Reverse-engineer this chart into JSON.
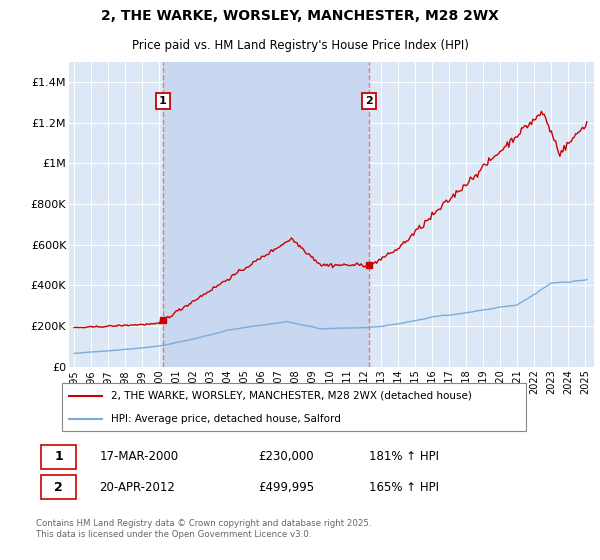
{
  "title": "2, THE WARKE, WORSLEY, MANCHESTER, M28 2WX",
  "subtitle": "Price paid vs. HM Land Registry's House Price Index (HPI)",
  "plot_bg_color": "#dce8f5",
  "shade_color": "#c8d8f0",
  "grid_color": "#ffffff",
  "ylim": [
    0,
    1500000
  ],
  "yticks": [
    0,
    200000,
    400000,
    600000,
    800000,
    1000000,
    1200000,
    1400000
  ],
  "ytick_labels": [
    "£0",
    "£200K",
    "£400K",
    "£600K",
    "£800K",
    "£1M",
    "£1.2M",
    "£1.4M"
  ],
  "xlim_start": 1994.7,
  "xlim_end": 2025.5,
  "xticks": [
    1995,
    1996,
    1997,
    1998,
    1999,
    2000,
    2001,
    2002,
    2003,
    2004,
    2005,
    2006,
    2007,
    2008,
    2009,
    2010,
    2011,
    2012,
    2013,
    2014,
    2015,
    2016,
    2017,
    2018,
    2019,
    2020,
    2021,
    2022,
    2023,
    2024,
    2025
  ],
  "red_line_color": "#cc0000",
  "blue_line_color": "#7aaddc",
  "vline_color": "#e87878",
  "annotation_box_color": "#cc0000",
  "legend_label_red": "2, THE WARKE, WORSLEY, MANCHESTER, M28 2WX (detached house)",
  "legend_label_blue": "HPI: Average price, detached house, Salford",
  "transaction1_date": "17-MAR-2000",
  "transaction1_price": "£230,000",
  "transaction1_hpi": "181% ↑ HPI",
  "transaction1_x": 2000.21,
  "transaction1_y": 230000,
  "transaction2_date": "20-APR-2012",
  "transaction2_price": "£499,995",
  "transaction2_hpi": "165% ↑ HPI",
  "transaction2_x": 2012.3,
  "transaction2_y": 499995,
  "footer_text": "Contains HM Land Registry data © Crown copyright and database right 2025.\nThis data is licensed under the Open Government Licence v3.0."
}
